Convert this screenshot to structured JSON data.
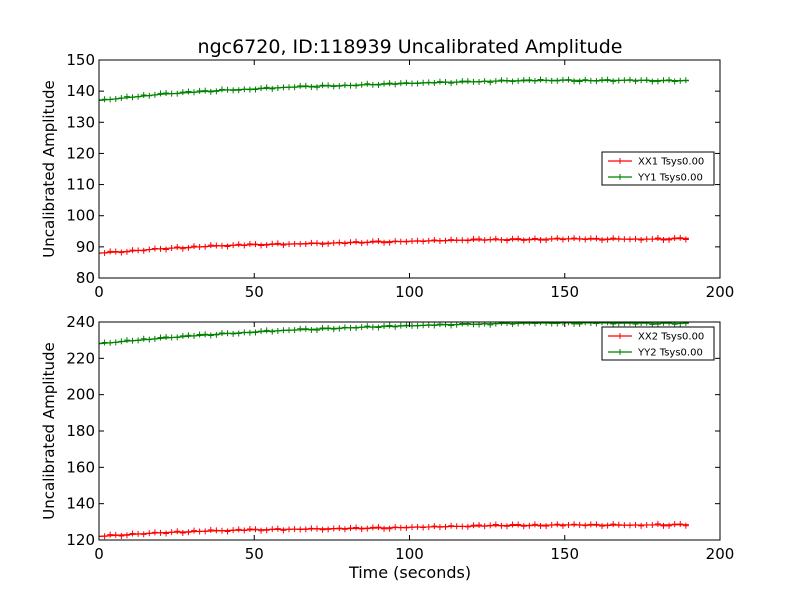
{
  "figure": {
    "title": "ngc6720, ID:118939 Uncalibrated Amplitude",
    "xlabel": "Time (seconds)"
  },
  "chart_data": [
    {
      "type": "line",
      "ylabel": "Uncalibrated Amplitude",
      "xlim": [
        0,
        200
      ],
      "ylim": [
        80,
        150
      ],
      "xticks": [
        "0",
        "50",
        "100",
        "150",
        "200"
      ],
      "yticks": [
        "80",
        "90",
        "100",
        "110",
        "120",
        "130",
        "140",
        "150"
      ],
      "legend_position": "right",
      "grid": false,
      "series": [
        {
          "name": "XX1 Tsys0.00",
          "color": "#ff0000",
          "x": [
            0,
            10,
            20,
            30,
            40,
            50,
            60,
            70,
            80,
            90,
            100,
            110,
            120,
            130,
            140,
            150,
            160,
            170,
            180,
            190
          ],
          "values": [
            88.0,
            88.6,
            89.4,
            89.9,
            90.4,
            90.7,
            90.9,
            91.1,
            91.3,
            91.6,
            91.8,
            92.0,
            92.2,
            92.3,
            92.4,
            92.6,
            92.5,
            92.5,
            92.5,
            92.7
          ]
        },
        {
          "name": "YY1 Tsys0.00",
          "color": "#008000",
          "x": [
            0,
            10,
            20,
            30,
            40,
            50,
            60,
            70,
            80,
            90,
            100,
            110,
            120,
            130,
            140,
            150,
            160,
            170,
            180,
            190
          ],
          "values": [
            137.0,
            138.0,
            139.0,
            139.6,
            140.3,
            140.7,
            141.2,
            141.6,
            141.8,
            142.2,
            142.5,
            142.8,
            143.0,
            143.3,
            143.4,
            143.5,
            143.4,
            143.5,
            143.4,
            143.4
          ]
        }
      ]
    },
    {
      "type": "line",
      "ylabel": "Uncalibrated Amplitude",
      "xlim": [
        0,
        200
      ],
      "ylim": [
        120,
        240
      ],
      "xticks": [
        "0",
        "50",
        "100",
        "150",
        "200"
      ],
      "yticks": [
        "120",
        "140",
        "160",
        "180",
        "200",
        "220",
        "240"
      ],
      "legend_position": "top-right",
      "grid": false,
      "series": [
        {
          "name": "XX2 Tsys0.00",
          "color": "#ff0000",
          "x": [
            0,
            10,
            20,
            30,
            40,
            50,
            60,
            70,
            80,
            90,
            100,
            110,
            120,
            130,
            140,
            150,
            160,
            170,
            180,
            190
          ],
          "values": [
            122.0,
            123.0,
            124.0,
            124.6,
            125.2,
            125.6,
            125.9,
            126.1,
            126.3,
            126.6,
            127.0,
            127.3,
            127.6,
            128.0,
            128.1,
            128.3,
            128.2,
            128.2,
            128.3,
            128.4
          ]
        },
        {
          "name": "YY2 Tsys0.00",
          "color": "#008000",
          "x": [
            0,
            10,
            20,
            30,
            40,
            50,
            60,
            70,
            80,
            90,
            100,
            110,
            120,
            130,
            140,
            150,
            160,
            170,
            180,
            190
          ],
          "values": [
            228.0,
            229.6,
            231.0,
            232.3,
            233.5,
            234.5,
            235.4,
            236.1,
            236.8,
            237.4,
            237.9,
            238.4,
            238.8,
            239.2,
            239.4,
            239.5,
            239.5,
            239.4,
            239.3,
            239.3
          ]
        }
      ]
    }
  ]
}
